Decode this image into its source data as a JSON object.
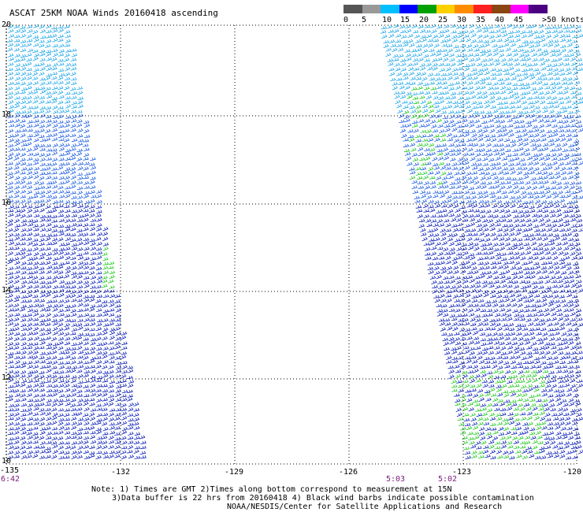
{
  "title": "ASCAT 25KM NOAA Winds 20160418 ascending",
  "legend": {
    "labels": [
      "0",
      "5",
      "10",
      "15",
      "20",
      "25",
      "30",
      "35",
      "40",
      "45",
      ">50 knots"
    ],
    "colors": [
      "#555555",
      "#999999",
      "#00bfff",
      "#0000ff",
      "#00a000",
      "#ffd000",
      "#ff8c00",
      "#ff2020",
      "#8b4513",
      "#ff00ff",
      "#4b0082"
    ]
  },
  "map": {
    "lat_labels": [
      "20",
      "18",
      "16",
      "14",
      "12",
      "10"
    ],
    "lon_labels": [
      "-135",
      "-132",
      "-129",
      "-126",
      "-123",
      "-120"
    ],
    "time_labels": [
      "6:42",
      "5:03",
      "5:02"
    ]
  },
  "notes": [
    "Note: 1) Times are GMT 2)Times along bottom correspond to measurement at 15N",
    "3)Data buffer is 22 hrs from 20160418 4) Black wind barbs indicate possible contamination",
    "NOAA/NESDIS/Center for Satellite Applications and Research"
  ]
}
